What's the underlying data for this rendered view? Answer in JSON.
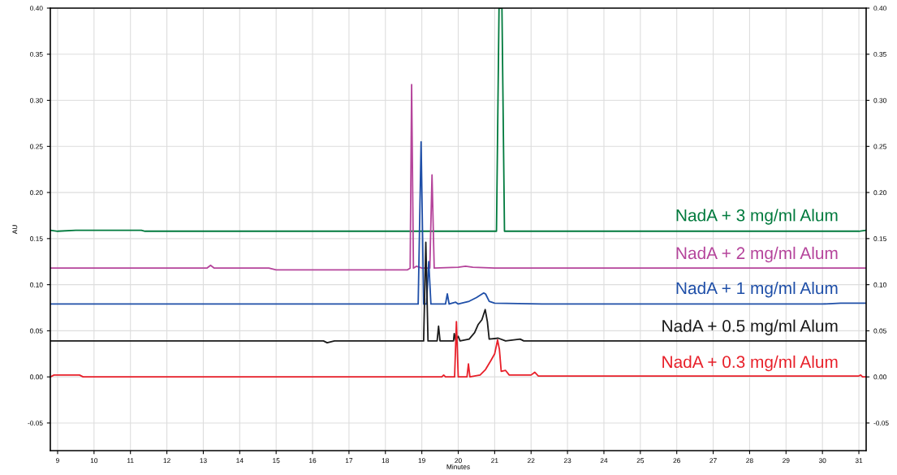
{
  "chart_data": {
    "type": "line",
    "xlabel": "Minutes",
    "ylabel": "AU",
    "xlim": [
      8.8,
      31.2
    ],
    "xticks": [
      9,
      10,
      11,
      12,
      13,
      14,
      15,
      16,
      17,
      18,
      19,
      20,
      21,
      22,
      23,
      24,
      25,
      26,
      27,
      28,
      29,
      30,
      31
    ],
    "ylim": [
      -0.08,
      0.4
    ],
    "yticks": [
      {
        "value": -0.05,
        "label": "-0.05"
      },
      {
        "value": 0,
        "label": "0.00"
      },
      {
        "value": 0.05,
        "label": "0.05"
      },
      {
        "value": 0.1,
        "label": "0.10"
      },
      {
        "value": 0.15,
        "label": "0.15"
      },
      {
        "value": 0.2,
        "label": "0.20"
      },
      {
        "value": 0.25,
        "label": "0.25"
      },
      {
        "value": 0.3,
        "label": "0.30"
      },
      {
        "value": 0.35,
        "label": "0.35"
      },
      {
        "value": 0.4,
        "label": "0.40"
      }
    ],
    "y2lim": [
      -0.08,
      0.4
    ],
    "y2ticks": [
      {
        "value": -0.05,
        "label": "-0.05"
      },
      {
        "value": 0,
        "label": "0.00"
      },
      {
        "value": 0.05,
        "label": "0.05"
      },
      {
        "value": 0.1,
        "label": "0.10"
      },
      {
        "value": 0.15,
        "label": "0.15"
      },
      {
        "value": 0.2,
        "label": "0.20"
      },
      {
        "value": 0.25,
        "label": "0.25"
      },
      {
        "value": 0.3,
        "label": "0.30"
      },
      {
        "value": 0.35,
        "label": "0.35"
      },
      {
        "value": 0.4,
        "label": "0.40"
      }
    ],
    "grid": true,
    "legend": false,
    "marker": "none",
    "line_style": "solid",
    "series": [
      {
        "name": "NadA + 3 mg/ml Alum",
        "color": "#007a3d",
        "x": [
          8.8,
          9.0,
          9.5,
          11.3,
          11.4,
          21.05,
          21.12,
          21.2,
          21.27,
          31.0,
          31.2
        ],
        "values": [
          0.159,
          0.158,
          0.159,
          0.159,
          0.158,
          0.158,
          0.4,
          0.4,
          0.158,
          0.158,
          0.159
        ]
      },
      {
        "name": "NadA + 2 mg/ml Alum",
        "color": "#b5449b",
        "x": [
          8.8,
          13.1,
          13.2,
          13.3,
          14.8,
          15.0,
          18.6,
          18.68,
          18.72,
          18.77,
          18.85,
          19.0,
          19.22,
          19.28,
          19.34,
          20.0,
          20.2,
          20.4,
          21.0,
          31.2
        ],
        "values": [
          0.118,
          0.118,
          0.121,
          0.118,
          0.118,
          0.116,
          0.116,
          0.118,
          0.317,
          0.118,
          0.12,
          0.118,
          0.118,
          0.219,
          0.118,
          0.119,
          0.12,
          0.119,
          0.118,
          0.118
        ]
      },
      {
        "name": "NadA + 1 mg/ml Alum",
        "color": "#1f4fa8",
        "x": [
          8.8,
          18.9,
          18.98,
          19.05,
          19.13,
          19.19,
          19.25,
          19.65,
          19.7,
          19.75,
          19.93,
          20.0,
          20.3,
          20.5,
          20.7,
          20.75,
          20.85,
          21.0,
          22.3,
          30.0,
          30.5,
          31.2
        ],
        "values": [
          0.079,
          0.079,
          0.255,
          0.079,
          0.079,
          0.125,
          0.079,
          0.079,
          0.09,
          0.079,
          0.081,
          0.079,
          0.082,
          0.086,
          0.091,
          0.09,
          0.082,
          0.08,
          0.079,
          0.079,
          0.08,
          0.08
        ]
      },
      {
        "name": "NadA + 0.5 mg/ml Alum",
        "color": "#1a1a1a",
        "x": [
          8.8,
          16.3,
          16.4,
          16.6,
          19.05,
          19.11,
          19.17,
          19.42,
          19.46,
          19.5,
          19.87,
          19.89,
          19.93,
          20.0,
          20.05,
          20.3,
          20.45,
          20.55,
          20.65,
          20.74,
          20.8,
          20.85,
          21.1,
          21.3,
          21.7,
          21.8,
          31.2
        ],
        "values": [
          0.039,
          0.039,
          0.037,
          0.039,
          0.039,
          0.146,
          0.039,
          0.039,
          0.055,
          0.039,
          0.039,
          0.047,
          0.04,
          0.044,
          0.039,
          0.041,
          0.048,
          0.057,
          0.062,
          0.073,
          0.06,
          0.041,
          0.042,
          0.039,
          0.041,
          0.039,
          0.039
        ]
      },
      {
        "name": "NadA + 0.3 mg/ml Alum",
        "color": "#e8202a",
        "x": [
          8.8,
          8.9,
          9.6,
          9.7,
          19.55,
          19.6,
          19.65,
          19.9,
          19.95,
          20.0,
          20.24,
          20.28,
          20.32,
          20.6,
          20.75,
          20.9,
          21.0,
          21.08,
          21.13,
          21.18,
          21.3,
          21.4,
          22.0,
          22.1,
          22.2,
          31.0,
          31.05,
          31.1,
          31.2
        ],
        "values": [
          0.0,
          0.002,
          0.002,
          0.0,
          0.0,
          0.002,
          0.0,
          0.0,
          0.06,
          0.0,
          0.0,
          0.014,
          0.0,
          0.002,
          0.008,
          0.018,
          0.025,
          0.04,
          0.03,
          0.006,
          0.007,
          0.002,
          0.002,
          0.005,
          0.001,
          0.001,
          0.002,
          0.0,
          0.0
        ]
      }
    ]
  }
}
